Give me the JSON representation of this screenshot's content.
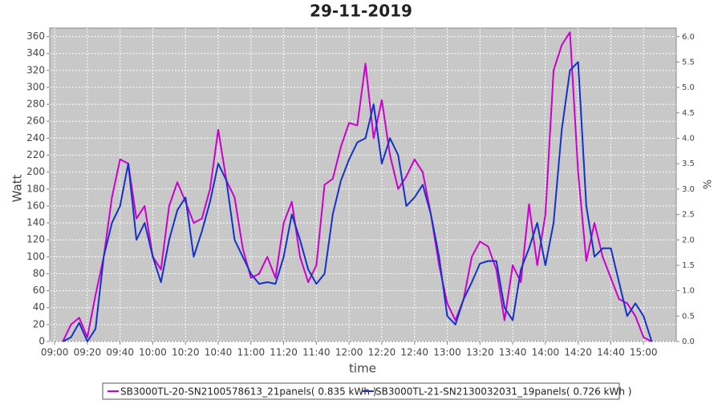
{
  "chart_data": {
    "type": "line",
    "title": "29-11-2019",
    "xlabel": "time",
    "ylabel": "Watt",
    "y2label": "%",
    "x": [
      545,
      550,
      555,
      560,
      565,
      570,
      575,
      580,
      585,
      590,
      595,
      600,
      605,
      610,
      615,
      620,
      625,
      630,
      635,
      640,
      645,
      650,
      655,
      660,
      665,
      670,
      675,
      680,
      685,
      690,
      695,
      700,
      705,
      710,
      715,
      720,
      725,
      730,
      735,
      740,
      745,
      750,
      755,
      760,
      765,
      770,
      775,
      780,
      785,
      790,
      795,
      800,
      805,
      810,
      815,
      820,
      825,
      830,
      835,
      840,
      845,
      850,
      855,
      860,
      865,
      870,
      875,
      880,
      885,
      890,
      895,
      900,
      905
    ],
    "series": [
      {
        "name": "SB3000TL-20-SN2100578613_21panels( 0.835 kWh )",
        "color": "#cc00cc",
        "values": [
          0,
          20,
          28,
          5,
          55,
          100,
          170,
          215,
          210,
          145,
          160,
          100,
          85,
          160,
          188,
          165,
          140,
          145,
          180,
          250,
          190,
          170,
          110,
          75,
          80,
          100,
          75,
          140,
          165,
          100,
          70,
          90,
          185,
          192,
          230,
          258,
          255,
          328,
          240,
          285,
          220,
          180,
          195,
          215,
          200,
          150,
          90,
          45,
          25,
          50,
          100,
          118,
          112,
          85,
          25,
          90,
          70,
          162,
          90,
          150,
          320,
          350,
          365,
          200,
          95,
          140,
          100,
          75,
          50,
          45,
          30,
          5,
          0
        ]
      },
      {
        "name": "SB3000TL-21-SN2130032031_19panels( 0.726 kWh )",
        "color": "#1432c8",
        "values": [
          0,
          5,
          22,
          0,
          15,
          100,
          140,
          160,
          210,
          120,
          140,
          100,
          70,
          120,
          155,
          170,
          100,
          130,
          165,
          210,
          190,
          120,
          100,
          80,
          68,
          70,
          68,
          100,
          150,
          120,
          85,
          68,
          80,
          150,
          190,
          215,
          235,
          240,
          280,
          210,
          240,
          220,
          160,
          170,
          185,
          150,
          100,
          30,
          20,
          50,
          70,
          92,
          95,
          95,
          40,
          25,
          85,
          110,
          140,
          90,
          140,
          250,
          320,
          330,
          160,
          100,
          110,
          110,
          70,
          30,
          45,
          30,
          0
        ]
      }
    ],
    "xlim": [
      537,
      920
    ],
    "xticks": [
      {
        "value": 540,
        "label": "09:00"
      },
      {
        "value": 560,
        "label": "09:20"
      },
      {
        "value": 580,
        "label": "09:40"
      },
      {
        "value": 600,
        "label": "10:00"
      },
      {
        "value": 620,
        "label": "10:20"
      },
      {
        "value": 640,
        "label": "10:40"
      },
      {
        "value": 660,
        "label": "11:00"
      },
      {
        "value": 680,
        "label": "11:20"
      },
      {
        "value": 700,
        "label": "11:40"
      },
      {
        "value": 720,
        "label": "12:00"
      },
      {
        "value": 740,
        "label": "12:20"
      },
      {
        "value": 760,
        "label": "12:40"
      },
      {
        "value": 780,
        "label": "13:00"
      },
      {
        "value": 800,
        "label": "13:20"
      },
      {
        "value": 820,
        "label": "13:40"
      },
      {
        "value": 840,
        "label": "14:00"
      },
      {
        "value": 860,
        "label": "14:20"
      },
      {
        "value": 880,
        "label": "14:40"
      },
      {
        "value": 900,
        "label": "15:00"
      }
    ],
    "ylim": [
      0,
      370
    ],
    "yticks": [
      0,
      20,
      40,
      60,
      80,
      100,
      120,
      140,
      160,
      180,
      200,
      220,
      240,
      260,
      280,
      300,
      320,
      340,
      360
    ],
    "y2lim": [
      0,
      6.17
    ],
    "y2ticks": [
      {
        "value": 0,
        "label": "0.0"
      },
      0.5,
      {
        "value": 1,
        "label": "1.0"
      },
      1.5,
      {
        "value": 2,
        "label": "2.0"
      },
      2.5,
      {
        "value": 3,
        "label": "3.0"
      },
      3.5,
      {
        "value": 4,
        "label": "4.0"
      },
      4.5,
      {
        "value": 5,
        "label": "5.0"
      },
      5.5,
      {
        "value": 6,
        "label": "6.0"
      }
    ],
    "grid": true
  }
}
